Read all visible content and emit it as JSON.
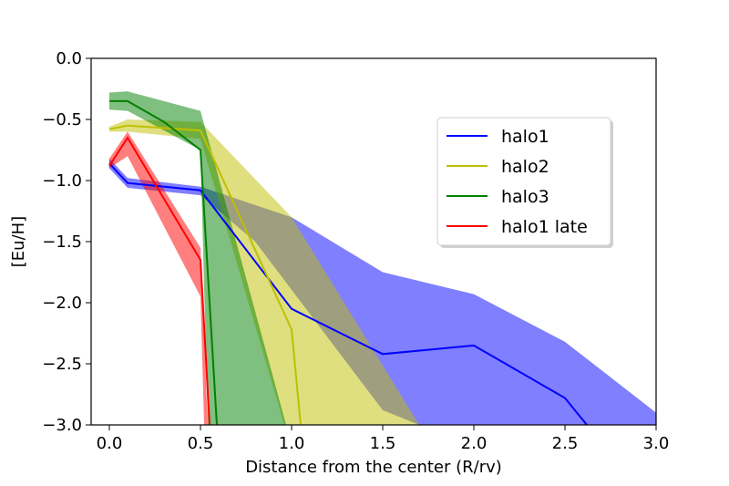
{
  "chart_data": {
    "type": "line",
    "xlabel": "Distance from the center (R/rv)",
    "ylabel": "[Eu/H]",
    "xlim": [
      -0.1,
      3.0
    ],
    "ylim": [
      -3.0,
      0.0
    ],
    "xticks": [
      0.0,
      0.5,
      1.0,
      1.5,
      2.0,
      2.5,
      3.0
    ],
    "yticks": [
      0.0,
      -0.5,
      -1.0,
      -1.5,
      -2.0,
      -2.5,
      -3.0
    ],
    "xtick_labels": [
      "0.0",
      "0.5",
      "1.0",
      "1.5",
      "2.0",
      "2.5",
      "3.0"
    ],
    "ytick_labels": [
      "0.0",
      "−0.5",
      "−1.0",
      "−1.5",
      "−2.0",
      "−2.5",
      "−3.0"
    ],
    "grid": false,
    "legend_position": "top-right",
    "series": [
      {
        "name": "halo1",
        "color": "#0000ff",
        "x": [
          0.0,
          0.1,
          0.5,
          1.0,
          1.5,
          2.0,
          2.5,
          2.62
        ],
        "y": [
          -0.86,
          -1.02,
          -1.08,
          -2.05,
          -2.42,
          -2.35,
          -2.78,
          -3.0
        ],
        "band_upper": [
          -0.82,
          -0.98,
          -1.05,
          -1.3,
          -1.75,
          -1.93,
          -2.32,
          -2.9
        ],
        "band_lower": [
          -0.9,
          -1.06,
          -1.12,
          -1.5,
          -2.88,
          -3.0,
          -3.0,
          -3.0
        ],
        "band_x": [
          0.0,
          0.1,
          0.5,
          1.0,
          1.5,
          2.0,
          2.5,
          3.0
        ],
        "band_lower_x": [
          0.0,
          0.1,
          0.5,
          0.8,
          1.5,
          1.7,
          2.2,
          3.0
        ]
      },
      {
        "name": "halo2",
        "color": "#bfbf00",
        "x": [
          0.0,
          0.1,
          0.5,
          1.0,
          1.05
        ],
        "y": [
          -0.58,
          -0.55,
          -0.59,
          -2.22,
          -3.0
        ],
        "band_x": [
          0.0,
          0.1,
          0.5,
          1.0,
          1.7
        ],
        "band_upper": [
          -0.56,
          -0.5,
          -0.52,
          -1.3,
          -3.0
        ],
        "band_lower": [
          -0.6,
          -0.6,
          -0.66,
          -3.0,
          -3.0
        ],
        "band_lower_x": [
          0.0,
          0.1,
          0.5,
          0.96,
          1.7
        ]
      },
      {
        "name": "halo3",
        "color": "#008000",
        "x": [
          0.0,
          0.1,
          0.3,
          0.5,
          0.55,
          0.59
        ],
        "y": [
          -0.35,
          -0.35,
          -0.52,
          -0.75,
          -2.0,
          -3.0
        ],
        "band_x": [
          0.0,
          0.1,
          0.5,
          0.97
        ],
        "band_upper": [
          -0.28,
          -0.27,
          -0.43,
          -3.0
        ],
        "band_lower": [
          -0.42,
          -0.43,
          -0.75,
          -3.0
        ],
        "band_lower_x": [
          0.0,
          0.1,
          0.5,
          0.54
        ]
      },
      {
        "name": "halo1 late",
        "color": "#ff0000",
        "x": [
          0.0,
          0.1,
          0.5,
          0.55
        ],
        "y": [
          -0.88,
          -0.65,
          -1.65,
          -3.0
        ],
        "band_x": [
          0.0,
          0.1,
          0.5,
          0.54
        ],
        "band_upper": [
          -0.82,
          -0.6,
          -1.55,
          -3.0
        ],
        "band_lower": [
          -0.9,
          -0.8,
          -1.95,
          -3.0
        ],
        "band_lower_x": [
          0.0,
          0.1,
          0.5,
          0.52
        ]
      }
    ]
  }
}
